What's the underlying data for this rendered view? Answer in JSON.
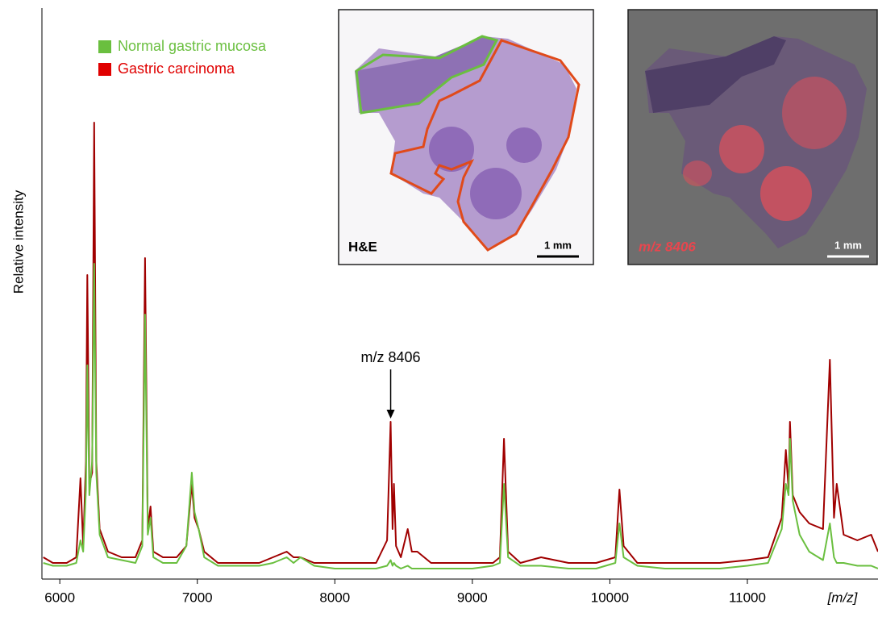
{
  "chart_data": {
    "type": "line",
    "y_label": "Relative intensity",
    "x_label": "[m/z]",
    "x": [
      5880,
      5950,
      6050,
      6120,
      6150,
      6170,
      6190,
      6200,
      6215,
      6235,
      6250,
      6265,
      6290,
      6350,
      6450,
      6550,
      6600,
      6620,
      6640,
      6660,
      6680,
      6750,
      6850,
      6920,
      6960,
      6980,
      7010,
      7050,
      7150,
      7300,
      7450,
      7550,
      7650,
      7700,
      7750,
      7850,
      8000,
      8150,
      8300,
      8380,
      8406,
      8420,
      8430,
      8445,
      8480,
      8530,
      8560,
      8600,
      8700,
      8850,
      9000,
      9150,
      9200,
      9230,
      9260,
      9350,
      9500,
      9700,
      9900,
      10040,
      10070,
      10100,
      10200,
      10400,
      10600,
      10800,
      11000,
      11150,
      11250,
      11280,
      11300,
      11310,
      11330,
      11380,
      11450,
      11550,
      11600,
      11630,
      11650,
      11700,
      11800,
      11900,
      11950
    ],
    "series": [
      {
        "name": "Normal gastric mucosa",
        "color": "#6abf3f",
        "values": [
          2,
          1.5,
          1.5,
          2,
          6,
          4,
          15,
          37,
          14,
          20,
          55,
          18,
          7,
          3,
          2.5,
          2,
          5,
          46,
          7,
          10,
          3,
          2,
          2,
          5,
          18,
          11,
          8,
          3,
          1.5,
          1.5,
          1.5,
          2,
          3,
          2,
          3,
          1.5,
          1,
          1,
          1,
          1.5,
          2.5,
          1.5,
          2,
          1.5,
          1,
          1.5,
          1,
          1,
          1,
          1,
          1,
          1.5,
          2,
          16,
          3,
          1.5,
          1.5,
          1,
          1,
          2,
          9,
          3,
          1.5,
          1,
          1,
          1,
          1.5,
          2,
          8,
          16,
          14,
          24,
          13,
          7,
          4,
          2.5,
          9,
          3,
          2,
          2,
          1.5,
          1.5,
          1
        ]
      },
      {
        "name": "Gastric carcinoma",
        "color": "#a00000",
        "values": [
          3,
          2,
          2,
          3,
          17,
          5,
          20,
          53,
          16,
          18,
          80,
          20,
          8,
          4,
          3,
          3,
          6,
          56,
          8,
          12,
          4,
          3,
          3,
          5,
          16,
          10,
          8,
          4,
          2,
          2,
          2,
          3,
          4,
          3,
          3,
          2,
          2,
          2,
          2,
          6,
          27,
          8,
          16,
          5,
          3,
          8,
          4,
          4,
          2,
          2,
          2,
          2,
          3,
          24,
          4,
          2,
          3,
          2,
          2,
          3,
          15,
          5,
          2,
          2,
          2,
          2,
          2.5,
          3,
          10,
          22,
          15,
          27,
          14,
          11,
          9,
          8,
          38,
          10,
          16,
          7,
          6,
          7,
          4
        ]
      }
    ],
    "xlim": [
      5870,
      11950
    ],
    "ylim": [
      0,
      100
    ],
    "xticks": [
      6000,
      7000,
      8000,
      9000,
      10000,
      11000
    ],
    "legend": "upper left",
    "annotation": {
      "text": "m/z 8406",
      "x": 8406
    },
    "panels": [
      {
        "label": "H&E",
        "scale_bar": "1 mm"
      },
      {
        "label": "m/z 8406",
        "scale_bar": "1 mm"
      }
    ]
  }
}
